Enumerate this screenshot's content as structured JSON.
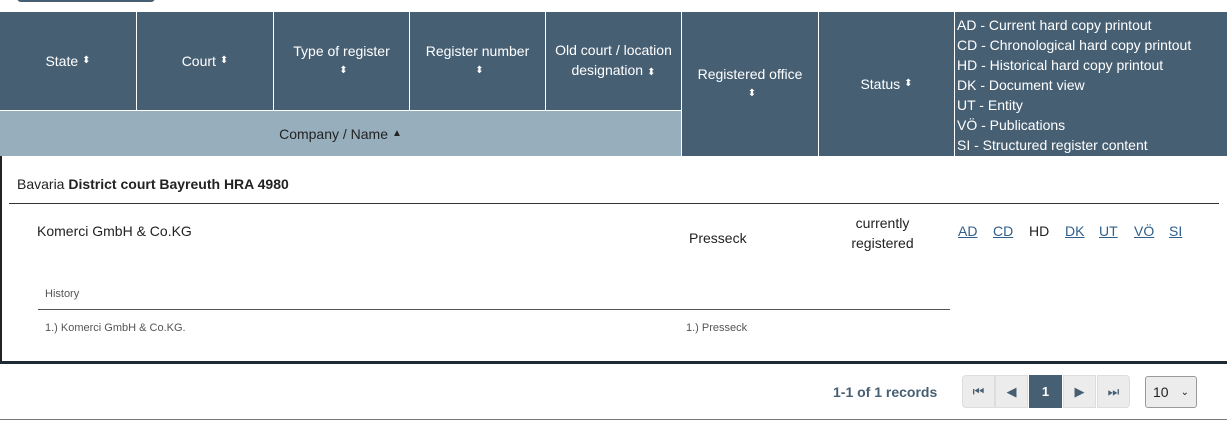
{
  "columns": {
    "state": "State",
    "court": "Court",
    "type": "Type of register",
    "number": "Register number",
    "old_court": "Old court / location designation",
    "office": "Registered office",
    "status": "Status",
    "company": "Company / Name"
  },
  "legend": [
    "AD - Current hard copy printout",
    "CD - Chronological hard copy printout",
    "HD - Historical hard copy printout",
    "DK - Document view",
    "UT - Entity",
    "VÖ - Publications",
    "SI - Structured register content"
  ],
  "group": {
    "state": "Bavaria",
    "court_reg": "District court Bayreuth HRA 4980"
  },
  "row": {
    "company": "Komerci GmbH & Co.KG",
    "office": "Presseck",
    "status": "currently registered",
    "docs": [
      "AD",
      "CD",
      "HD",
      "DK",
      "UT",
      "VÖ",
      "SI"
    ]
  },
  "history": {
    "label": "History",
    "company": "1.) Komerci GmbH & Co.KG.",
    "office": "1.) Presseck"
  },
  "pagination": {
    "summary": "1-1 of 1 records",
    "current_page": "1",
    "page_size": "10"
  },
  "colors": {
    "header": "#475f73",
    "subheader": "#97aebd",
    "link": "#2f5f8a"
  }
}
